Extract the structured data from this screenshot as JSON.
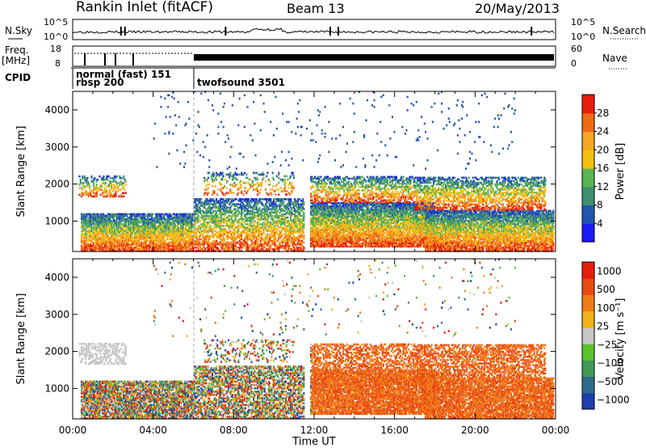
{
  "header": {
    "title": "Rankin Inlet (fitACF)",
    "beam": "Beam 13",
    "date": "20/May/2013"
  },
  "summary": {
    "nsky_label": "N.Sky",
    "nsky_tick_top": "10^5",
    "nsky_tick_bottom": "10^0",
    "nsearch_label": "N.Search",
    "nsearch_tick_top": "10^5",
    "nsearch_tick_bottom": "10^0",
    "freq_label_1": "Freq.",
    "freq_label_2": "[MHz]",
    "freq_tick_top": "18",
    "freq_tick_bottom": "8",
    "nave_label": "Nave",
    "nave_tick_top": "60",
    "nave_tick_bottom": "0",
    "cpid_label": "CPID",
    "cpid_1": "normal (fast) 151",
    "cpid_2": "rbsp 200",
    "cpid_3": "twofsound 3501"
  },
  "chart_data": [
    {
      "type": "heatmap",
      "title": "",
      "xlabel": "",
      "ylabel": "Slant Range [km]",
      "xlim": [
        0,
        24
      ],
      "ylim": [
        180,
        4500
      ],
      "yticks": [
        "1000",
        "2000",
        "3000",
        "4000"
      ],
      "colorbar_label": "Power [dB]",
      "colorbar_ticks": [
        "4",
        "8",
        "12",
        "16",
        "20",
        "24",
        "28"
      ],
      "colorbar_range": [
        0,
        32
      ],
      "colors": [
        "#1b1bf5",
        "#2056ad",
        "#3f8f6e",
        "#5ab452",
        "#f2c20f",
        "#f5a623",
        "#f06a15",
        "#e81c0c"
      ]
    },
    {
      "type": "heatmap",
      "title": "",
      "xlabel": "Time UT",
      "ylabel": "Slant Range [km]",
      "xlim": [
        0,
        24
      ],
      "ylim": [
        180,
        4500
      ],
      "xticks": [
        "00:00",
        "04:00",
        "08:00",
        "12:00",
        "16:00",
        "20:00",
        "00:00"
      ],
      "yticks": [
        "1000",
        "2000",
        "3000",
        "4000"
      ],
      "colorbar_label": "Velocity [m s⁻¹]",
      "colorbar_ticks": [
        "1000",
        "500",
        "100",
        "25",
        "−25",
        "−100",
        "−500",
        "−1000"
      ],
      "colors": [
        "#1c3fae",
        "#2f6a8c",
        "#3f9a58",
        "#58c22f",
        "#c6c6c6",
        "#f0b41a",
        "#f07d18",
        "#e84a14",
        "#e81c0c"
      ]
    }
  ]
}
